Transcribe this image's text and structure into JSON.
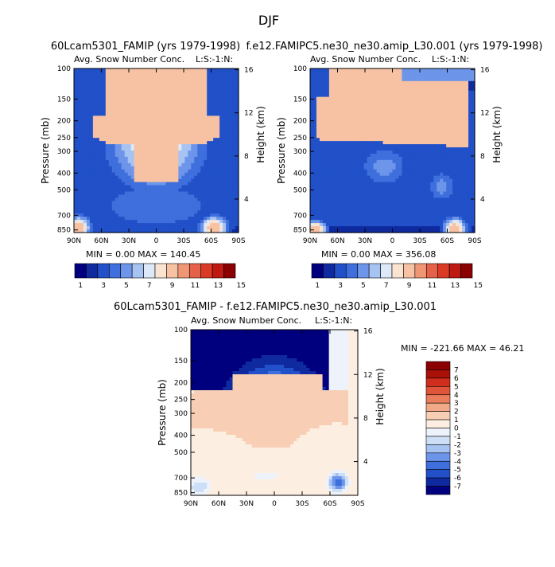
{
  "figure": {
    "title": "DJF"
  },
  "colors": {
    "bwr_15": [
      "#00007f",
      "#0e2a9e",
      "#2150c8",
      "#3e6fdc",
      "#6d95ea",
      "#a6c3f2",
      "#dde8f8",
      "#fbe3d1",
      "#f6c2a3",
      "#ef9675",
      "#e6614a",
      "#db3a24",
      "#be1a12",
      "#8b0000"
    ],
    "bwr_diff": [
      "#00007f",
      "#0e2a9e",
      "#2150c8",
      "#3e6fdc",
      "#6d95ea",
      "#a6c3f2",
      "#cddff6",
      "#eef3fb",
      "#fdeee2",
      "#f8cfb4",
      "#f2a987",
      "#e97d5c",
      "#e0553a",
      "#cf2e1c",
      "#a81008",
      "#8b0000"
    ]
  },
  "chart_data": [
    {
      "type": "heatmap",
      "title": "60Lcam5301_FAMIP (yrs 1979-1998)",
      "subtitle": "Avg. Snow Number Conc.",
      "corner_label": "L:S:-1:N:",
      "ylabel": "Pressure (mb)",
      "ylabel_right": "Height (km)",
      "x_ticks": [
        "90N",
        "60N",
        "30N",
        "0",
        "30S",
        "60S",
        "90S"
      ],
      "y_ticks": [
        100,
        150,
        200,
        250,
        300,
        400,
        500,
        700,
        850
      ],
      "y_ticks_right": [
        4,
        8,
        12,
        16
      ],
      "stats": "MIN =    0.00   MAX = 140.45",
      "levels": [
        1,
        3,
        5,
        7,
        9,
        11,
        13,
        15
      ],
      "colorbar_labels": [
        "1",
        "3",
        "5",
        "7",
        "9",
        "11",
        "13",
        "15"
      ]
    },
    {
      "type": "heatmap",
      "title": "f.e12.FAMIPC5.ne30_ne30.amip_L30.001 (yrs 1979-1998)",
      "subtitle": "Avg. Snow Number Conc.",
      "corner_label": "L:S:-1:N:",
      "ylabel": "Pressure (mb)",
      "ylabel_right": "Height (km)",
      "x_ticks": [
        "90N",
        "60N",
        "30N",
        "0",
        "30S",
        "60S",
        "90S"
      ],
      "y_ticks": [
        100,
        150,
        200,
        250,
        300,
        400,
        500,
        700,
        850
      ],
      "y_ticks_right": [
        4,
        8,
        12,
        16
      ],
      "stats": "MIN =    0.00   MAX = 356.08",
      "levels": [
        1,
        3,
        5,
        7,
        9,
        11,
        13,
        15
      ],
      "colorbar_labels": [
        "1",
        "3",
        "5",
        "7",
        "9",
        "11",
        "13",
        "15"
      ]
    },
    {
      "type": "heatmap",
      "title": "60Lcam5301_FAMIP - f.e12.FAMIPC5.ne30_ne30.amip_L30.001",
      "subtitle": "Avg. Snow Number Conc.",
      "corner_label": "L:S:-1:N:",
      "ylabel": "Pressure (mb)",
      "ylabel_right": "Height (km)",
      "x_ticks": [
        "90N",
        "60N",
        "30N",
        "0",
        "30S",
        "60S",
        "90S"
      ],
      "y_ticks": [
        100,
        150,
        200,
        250,
        300,
        400,
        500,
        700,
        850
      ],
      "y_ticks_right": [
        4,
        8,
        12,
        16
      ],
      "stats": "MIN = -221.66   MAX =   46.21",
      "levels": [
        -7,
        -6,
        -5,
        -4,
        -3,
        -2,
        -1,
        0,
        1,
        2,
        3,
        4,
        5,
        6,
        7
      ],
      "colorbar_labels": [
        "7",
        "6",
        "5",
        "4",
        "3",
        "2",
        "1",
        "0",
        "-1",
        "-2",
        "-3",
        "-4",
        "-5",
        "-6",
        "-7"
      ]
    }
  ]
}
